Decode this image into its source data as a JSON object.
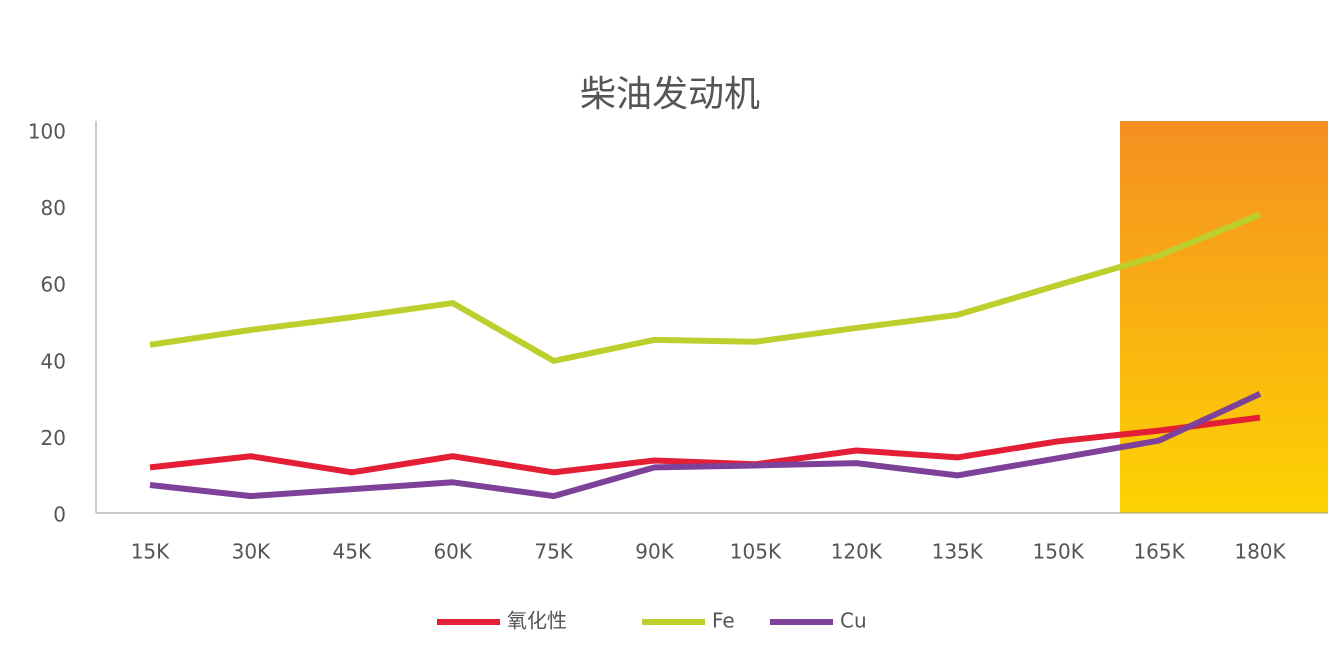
{
  "chart_data": {
    "type": "line",
    "title": "柴油发动机",
    "categories": [
      "15K",
      "30K",
      "45K",
      "60K",
      "75K",
      "90K",
      "105K",
      "120K",
      "135K",
      "150K",
      "165K",
      "180K"
    ],
    "series": [
      {
        "name": "氧化性",
        "color": "#e41e34",
        "values": [
          12.7,
          15.6,
          11.4,
          15.6,
          11.4,
          14.5,
          13.5,
          17.1,
          15.3,
          19.5,
          22.3,
          25.7
        ]
      },
      {
        "name": "Fe",
        "color": "#bccf2c",
        "values": [
          44.7,
          48.6,
          51.9,
          55.6,
          40.5,
          46.0,
          45.5,
          49.1,
          52.5,
          60.3,
          68.0,
          78.7
        ]
      },
      {
        "name": "Cu",
        "color": "#7d4199",
        "values": [
          8.1,
          5.2,
          7.0,
          8.8,
          5.2,
          12.7,
          13.2,
          13.8,
          10.6,
          15.1,
          19.7,
          31.9
        ]
      }
    ],
    "ylim": [
      0,
      100
    ],
    "yticks": [
      0,
      20,
      40,
      60,
      80,
      100
    ],
    "grid": false
  }
}
